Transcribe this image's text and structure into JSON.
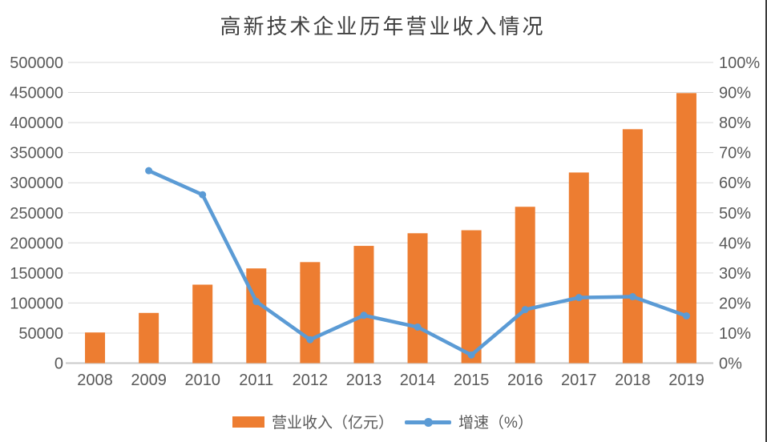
{
  "chart_data": {
    "type": "bar+line",
    "title": "高新技术企业历年营业收入情况",
    "categories": [
      "2008",
      "2009",
      "2010",
      "2011",
      "2012",
      "2013",
      "2014",
      "2015",
      "2016",
      "2017",
      "2018",
      "2019"
    ],
    "series": [
      {
        "name": "营业收入（亿元）",
        "type": "bar",
        "axis": "left",
        "color": "#ED7D31",
        "values": [
          51000,
          83500,
          130500,
          157500,
          168000,
          195000,
          216000,
          221000,
          260000,
          317000,
          389000,
          449000
        ]
      },
      {
        "name": "增速（%）",
        "type": "line",
        "axis": "right",
        "color": "#5B9BD5",
        "values": [
          null,
          64,
          56,
          20.5,
          7.8,
          15.9,
          12,
          2.7,
          17.8,
          21.8,
          22.1,
          15.7
        ]
      }
    ],
    "left_axis": {
      "min": 0,
      "max": 500000,
      "step": 50000,
      "tick_labels": [
        "0",
        "50000",
        "100000",
        "150000",
        "200000",
        "250000",
        "300000",
        "350000",
        "400000",
        "450000",
        "500000"
      ]
    },
    "right_axis": {
      "min": 0,
      "max": 100,
      "step": 10,
      "tick_labels": [
        "0%",
        "10%",
        "20%",
        "30%",
        "40%",
        "50%",
        "60%",
        "70%",
        "80%",
        "90%",
        "100%"
      ]
    },
    "legend_position": "bottom",
    "grid": true
  },
  "style": {
    "bar_color": "#ED7D31",
    "line_color": "#5B9BD5",
    "grid_color": "#D9D9D9",
    "axis_line_color": "#C9C9C9",
    "tick_text_color": "#595959",
    "title_color": "#3F3F3F",
    "background": "#FFFFFF",
    "right_border_color": "#3C3C3C"
  }
}
